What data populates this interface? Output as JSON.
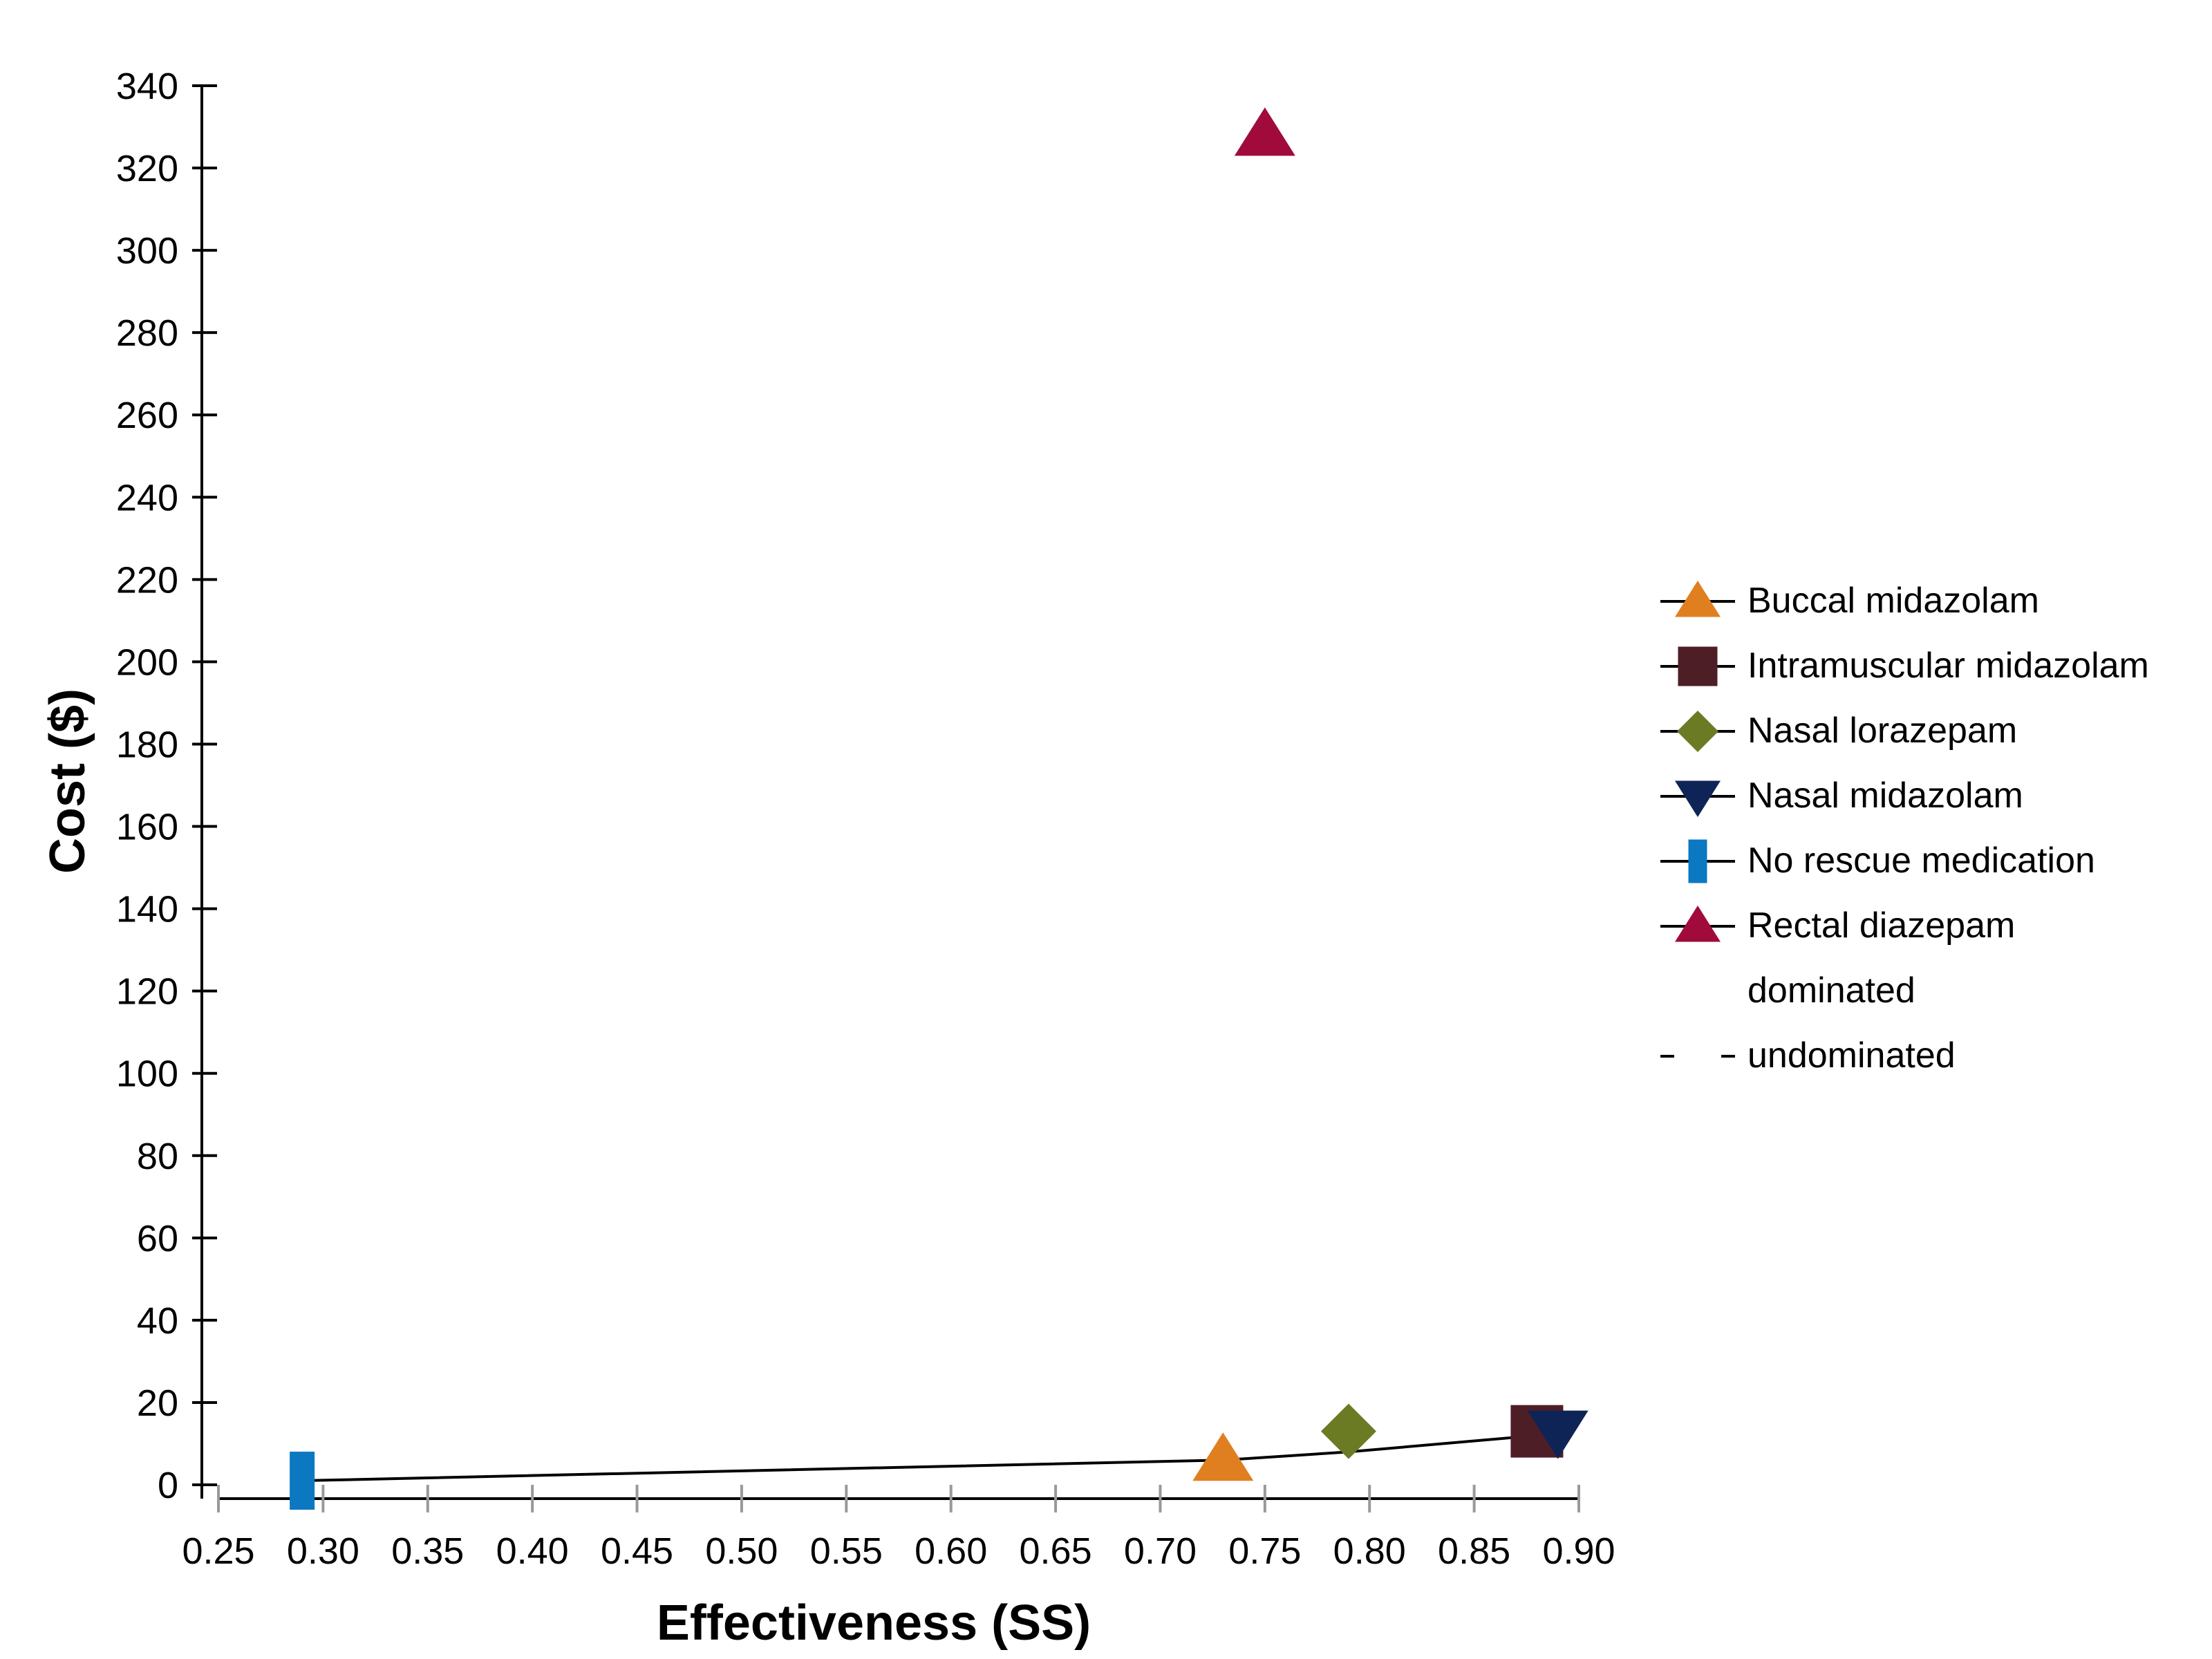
{
  "chart_data": {
    "type": "scatter",
    "xlabel": "Effectiveness (SS)",
    "ylabel": "Cost ($)",
    "xlim": [
      0.25,
      0.9
    ],
    "ylim": [
      0,
      340
    ],
    "x_ticks": [
      "0.25",
      "0.30",
      "0.35",
      "0.40",
      "0.45",
      "0.50",
      "0.55",
      "0.60",
      "0.65",
      "0.70",
      "0.75",
      "0.80",
      "0.85",
      "0.90"
    ],
    "y_ticks": [
      "0",
      "20",
      "40",
      "60",
      "80",
      "100",
      "120",
      "140",
      "160",
      "180",
      "200",
      "220",
      "240",
      "260",
      "280",
      "300",
      "320",
      "340"
    ],
    "legend_position": "right",
    "series": [
      {
        "name": "Buccal midazolam",
        "marker": "triangle-up",
        "color": "#E07F20",
        "points": [
          {
            "x": 0.73,
            "y": 6
          }
        ]
      },
      {
        "name": "Intramuscular midazolam",
        "marker": "square",
        "color": "#4E1E26",
        "points": [
          {
            "x": 0.88,
            "y": 13
          }
        ]
      },
      {
        "name": "Nasal lorazepam",
        "marker": "diamond",
        "color": "#6B7B24",
        "points": [
          {
            "x": 0.79,
            "y": 13
          }
        ]
      },
      {
        "name": "Nasal midazolam",
        "marker": "triangle-down",
        "color": "#0F2456",
        "points": [
          {
            "x": 0.89,
            "y": 13
          }
        ]
      },
      {
        "name": "No rescue medication",
        "marker": "bar",
        "color": "#0C78C2",
        "points": [
          {
            "x": 0.29,
            "y": 1
          }
        ]
      },
      {
        "name": "Rectal diazepam",
        "marker": "triangle-up",
        "color": "#A00B3C",
        "points": [
          {
            "x": 0.75,
            "y": 328
          }
        ]
      },
      {
        "name": "dominated",
        "marker": "none",
        "color": "#000000",
        "points": []
      },
      {
        "name": "undominated",
        "marker": "line",
        "color": "#000000",
        "points": [
          {
            "x": 0.29,
            "y": 1
          },
          {
            "x": 0.73,
            "y": 6
          },
          {
            "x": 0.79,
            "y": 8
          },
          {
            "x": 0.88,
            "y": 12
          },
          {
            "x": 0.89,
            "y": 12
          }
        ]
      }
    ]
  }
}
